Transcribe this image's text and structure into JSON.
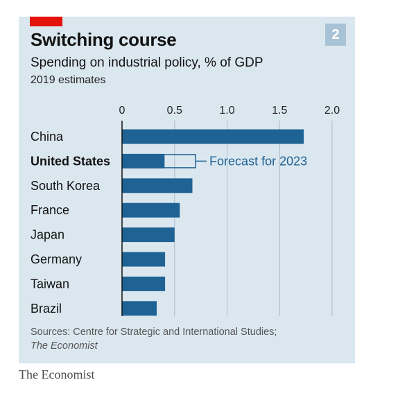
{
  "header": {
    "chart_number": "2",
    "title": "Switching course",
    "subtitle": "Spending on industrial policy, % of GDP",
    "subtitle2": "2019 estimates"
  },
  "footer": {
    "sources_line1": "Sources: Centre for Strategic and International Studies;",
    "sources_line2": "The Economist",
    "brand": "The Economist"
  },
  "colors": {
    "bar": "#1f6394",
    "highlight_red": "#e3120b",
    "panel_bg": "#dbe7ef",
    "gridline": "#a9bccb"
  },
  "chart_data": {
    "type": "bar",
    "orientation": "horizontal",
    "title": "Switching course",
    "subtitle": "Spending on industrial policy, % of GDP",
    "xlabel": "",
    "ylabel": "",
    "xlim": [
      0,
      2.0
    ],
    "ticks": [
      0,
      0.5,
      1.0,
      1.5,
      2.0
    ],
    "tick_labels": [
      "0",
      "0.5",
      "1.0",
      "1.5",
      "2.0"
    ],
    "categories": [
      "China",
      "United States",
      "South Korea",
      "France",
      "Japan",
      "Germany",
      "Taiwan",
      "Brazil"
    ],
    "emphasized_category": "United States",
    "values": [
      1.73,
      0.4,
      0.67,
      0.55,
      0.5,
      0.41,
      0.41,
      0.33
    ],
    "forecast": {
      "category": "United States",
      "value": 0.7,
      "label": "Forecast for 2023"
    }
  }
}
